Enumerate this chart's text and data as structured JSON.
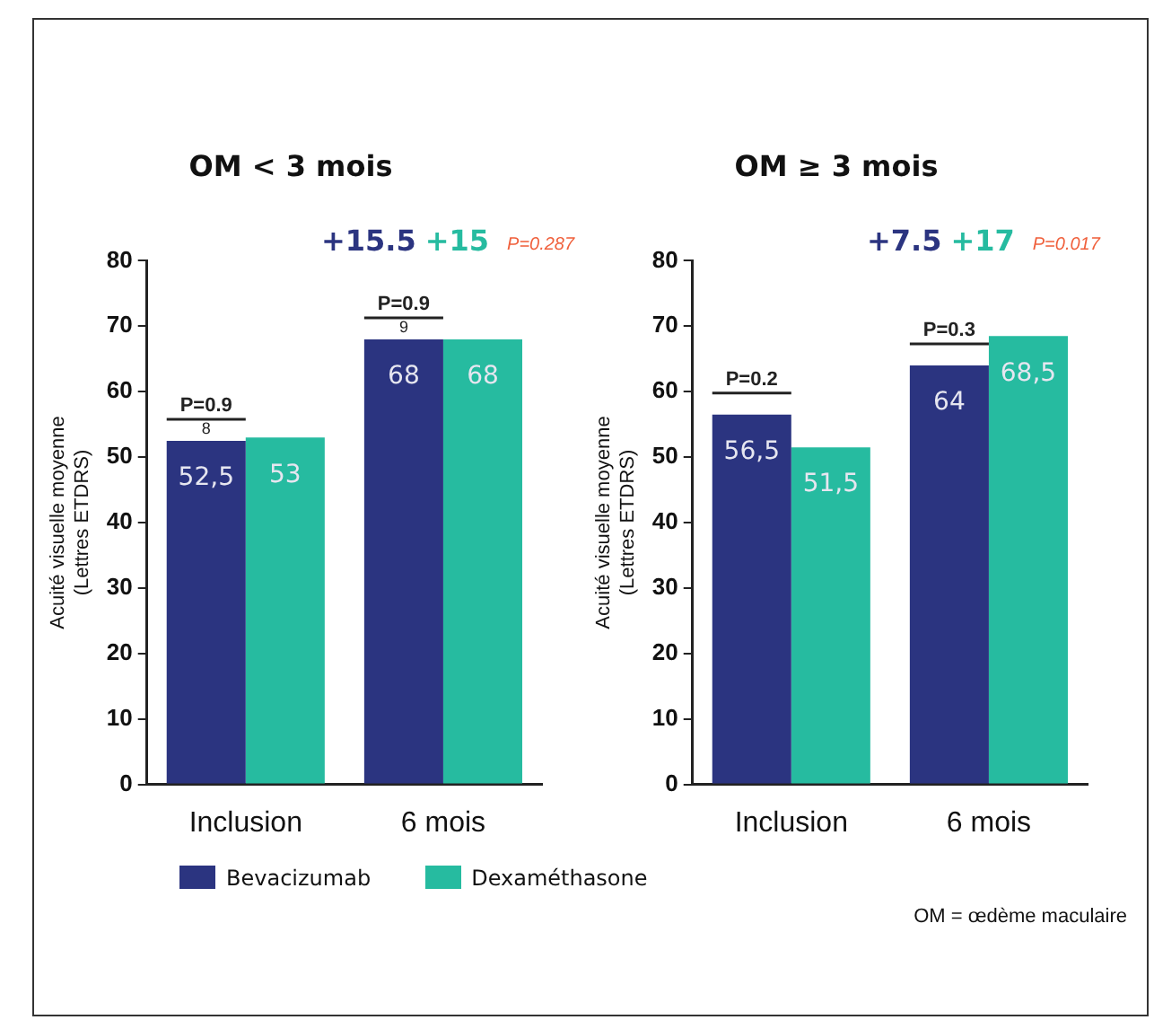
{
  "chart_data": [
    {
      "type": "bar",
      "title": "OM < 3 mois",
      "ylabel": "Acuité visuelle moyenne\n(Lettres ETDRS)",
      "categories": [
        "Inclusion",
        "6 mois"
      ],
      "series": [
        {
          "name": "Bevacizumab",
          "color": "#2b3480",
          "values": [
            52.5,
            68
          ],
          "value_labels": [
            "52,5",
            "68"
          ]
        },
        {
          "name": "Dexaméthasone",
          "color": "#26bba0",
          "values": [
            53,
            68
          ],
          "value_labels": [
            "53",
            "68"
          ]
        }
      ],
      "ylim": [
        0,
        80
      ],
      "yticks": [
        0,
        10,
        20,
        30,
        40,
        50,
        60,
        70,
        80
      ],
      "grid": false,
      "legend": "bottom",
      "annotations": [
        "+15.5",
        "+15",
        "P=0.287",
        "P=0.9",
        "8",
        "P=0.9",
        "9"
      ]
    },
    {
      "type": "bar",
      "title": "OM ≥ 3 mois",
      "ylabel": "Acuité visuelle moyenne\n(Lettres ETDRS)",
      "categories": [
        "Inclusion",
        "6 mois"
      ],
      "series": [
        {
          "color": "#2b3480",
          "values": [
            56.5,
            64
          ],
          "value_labels": [
            "56,5",
            "64"
          ]
        },
        {
          "color": "#26bba0",
          "values": [
            51.5,
            68.5
          ],
          "value_labels": [
            "51,5",
            "68,5"
          ]
        }
      ],
      "ylim": [
        0,
        80
      ],
      "yticks": [
        0,
        10,
        20,
        30,
        40,
        50,
        60,
        70,
        80
      ],
      "grid": false,
      "annotations": [
        "+7.5",
        "+17",
        "P=0.017",
        "P=0.2",
        "P=0.3",
        "OM = œdème maculaire"
      ]
    }
  ]
}
